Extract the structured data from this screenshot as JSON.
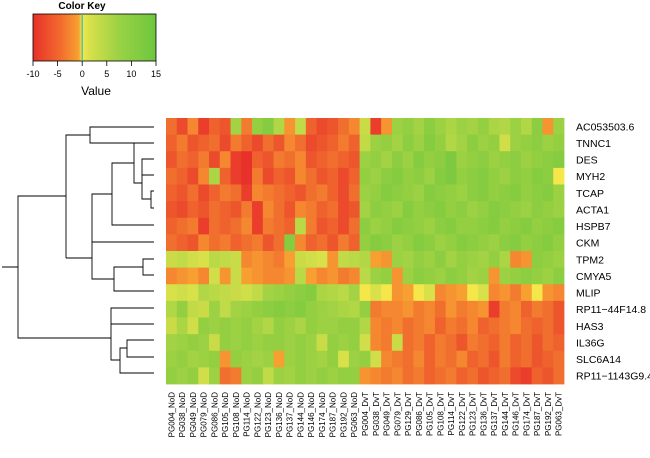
{
  "chart_data": {
    "type": "heatmap",
    "color_key": {
      "title": "Color Key",
      "xlabel": "Value",
      "range": [
        -10,
        15
      ],
      "ticks": [
        "-10",
        "-5",
        "0",
        "5",
        "10",
        "15"
      ],
      "colors": {
        "low": "#e8312a",
        "mid_low": "#f7a031",
        "zero": "#f5e64a",
        "high": "#6ec63e"
      }
    },
    "rows": [
      "AC053503.6",
      "TNNC1",
      "DES",
      "MYH2",
      "TCAP",
      "ACTA1",
      "HSPB7",
      "CKM",
      "TPM2",
      "CMYA5",
      "MLIP",
      "RP11−44F14.8",
      "HAS3",
      "IL36G",
      "SLC6A14",
      "RP11−1143G9.4"
    ],
    "columns": [
      "PG004_NoD",
      "PG038_NoD",
      "PG049_NoD",
      "PG079_NoD",
      "PG086_NoD",
      "PG105_NoD",
      "PG108_NoD",
      "PG114_NoD",
      "PG122_NoD",
      "PG123_NoD",
      "PG136_NoD",
      "PG137_NoD",
      "PG144_NoD",
      "PG146_NoD",
      "PG174_NoD",
      "PG187_NoD",
      "PG192_NoD",
      "PG063_NoD",
      "PG004_DvT",
      "PG038_DvT",
      "PG049_DvT",
      "PG079_DvT",
      "PG129_DvT",
      "PG086_DvT",
      "PG105_DvT",
      "PG108_DvT",
      "PG114_DvT",
      "PG122_DvT",
      "PG123_DvT",
      "PG136_DvT",
      "PG137_DvT",
      "PG144_DvT",
      "PG146_DvT",
      "PG174_DvT",
      "PG187_DvT",
      "PG192_DvT",
      "PG063_DvT"
    ],
    "values": [
      [
        -5,
        -8,
        -3,
        -9,
        -6,
        -7,
        8,
        -4,
        10,
        12,
        6,
        -2,
        4,
        -6,
        -8,
        -7,
        -5,
        -3,
        3,
        -9,
        -2,
        9,
        10,
        8,
        11,
        9,
        7,
        9,
        8,
        10,
        7,
        6,
        9,
        6,
        11,
        -2,
        9
      ],
      [
        -6,
        -4,
        -7,
        -6,
        -5,
        -8,
        -4,
        -6,
        -8,
        -5,
        -7,
        -3,
        -5,
        -8,
        -7,
        -6,
        -4,
        -6,
        4,
        9,
        10,
        8,
        11,
        9,
        12,
        10,
        6,
        8,
        11,
        9,
        10,
        2,
        9,
        10,
        11,
        9,
        10
      ],
      [
        -7,
        -5,
        -6,
        -4,
        -8,
        -3,
        -9,
        -10,
        -6,
        -7,
        -4,
        -5,
        -3,
        -7,
        -6,
        -5,
        -6,
        -7,
        9,
        10,
        8,
        11,
        9,
        12,
        10,
        11,
        13,
        9,
        10,
        11,
        9,
        10,
        11,
        9,
        10,
        11,
        12
      ],
      [
        -5,
        -6,
        -8,
        -3,
        7,
        -6,
        -9,
        -10,
        -4,
        -8,
        -6,
        -7,
        -3,
        -5,
        -7,
        -6,
        -8,
        -6,
        10,
        9,
        11,
        12,
        10,
        11,
        9,
        12,
        13,
        10,
        11,
        12,
        10,
        9,
        11,
        10,
        12,
        11,
        0
      ],
      [
        -6,
        -7,
        -5,
        -8,
        -6,
        -4,
        -5,
        -9,
        -3,
        -4,
        -5,
        -6,
        -7,
        -5,
        -4,
        -6,
        -8,
        -5,
        9,
        10,
        12,
        11,
        10,
        9,
        12,
        11,
        10,
        9,
        11,
        12,
        10,
        11,
        12,
        10,
        11,
        12,
        9
      ],
      [
        -7,
        -8,
        -6,
        -7,
        -5,
        -6,
        -7,
        -4,
        -9,
        -3,
        -5,
        -7,
        -3,
        -4,
        -6,
        -5,
        -8,
        -7,
        8,
        11,
        10,
        9,
        12,
        10,
        11,
        12,
        10,
        11,
        9,
        10,
        12,
        11,
        10,
        9,
        11,
        10,
        9
      ],
      [
        -6,
        -5,
        -4,
        -9,
        -5,
        -6,
        -5,
        -3,
        -9,
        -4,
        -5,
        -6,
        5,
        -4,
        -7,
        -6,
        -8,
        -5,
        11,
        9,
        10,
        12,
        11,
        10,
        9,
        11,
        12,
        10,
        10,
        11,
        12,
        10,
        11,
        12,
        10,
        11,
        12
      ],
      [
        -5,
        -6,
        -7,
        -3,
        -5,
        -4,
        -6,
        -5,
        -4,
        -7,
        -5,
        12,
        -3,
        -6,
        -5,
        -7,
        -4,
        -6,
        10,
        12,
        11,
        9,
        10,
        12,
        11,
        9,
        10,
        12,
        11,
        10,
        9,
        11,
        12,
        10,
        11,
        12,
        10
      ],
      [
        3,
        4,
        2,
        1,
        5,
        4,
        3,
        -3,
        -2,
        -3,
        -4,
        -1,
        3,
        2,
        1,
        -2,
        4,
        5,
        6,
        -1,
        -2,
        9,
        8,
        10,
        9,
        11,
        8,
        10,
        9,
        8,
        10,
        7,
        -3,
        -2,
        11,
        10,
        9
      ],
      [
        -3,
        -2,
        -1,
        -3,
        2,
        -2,
        3,
        -1,
        -2,
        -3,
        -3,
        -2,
        5,
        -1,
        -3,
        -2,
        -4,
        -3,
        5,
        9,
        10,
        -2,
        9,
        11,
        10,
        9,
        11,
        10,
        8,
        9,
        -2,
        9,
        10,
        11,
        10,
        9,
        11
      ],
      [
        1,
        2,
        1,
        6,
        5,
        4,
        3,
        2,
        4,
        8,
        9,
        10,
        11,
        12,
        7,
        6,
        5,
        8,
        0,
        1,
        0,
        -2,
        -1,
        0,
        1,
        -3,
        -2,
        -1,
        0,
        1,
        -3,
        -2,
        -4,
        -1,
        0,
        -2,
        -3
      ],
      [
        6,
        10,
        4,
        3,
        9,
        4,
        8,
        9,
        10,
        11,
        12,
        11,
        12,
        10,
        9,
        8,
        7,
        6,
        10,
        -4,
        -3,
        -3,
        -2,
        -4,
        -3,
        -5,
        -2,
        -4,
        -3,
        -2,
        -9,
        -4,
        -3,
        -6,
        -4,
        -5,
        -7
      ],
      [
        3,
        7,
        2,
        10,
        9,
        10,
        9,
        10,
        8,
        6,
        10,
        9,
        7,
        10,
        9,
        9,
        10,
        10,
        6,
        -3,
        -4,
        -3,
        -5,
        -4,
        -3,
        -6,
        -4,
        -5,
        -3,
        -6,
        -5,
        -4,
        -3,
        -5,
        -6,
        -5,
        -7
      ],
      [
        8,
        9,
        10,
        9,
        3,
        10,
        9,
        10,
        9,
        10,
        10,
        9,
        10,
        9,
        3,
        10,
        9,
        10,
        2,
        -3,
        -4,
        3,
        -5,
        -4,
        -6,
        -4,
        -5,
        -7,
        -4,
        -5,
        -6,
        -4,
        -6,
        -5,
        -7,
        -5,
        -6
      ],
      [
        9,
        10,
        8,
        9,
        10,
        -2,
        10,
        9,
        8,
        9,
        -1,
        9,
        10,
        9,
        8,
        10,
        1,
        9,
        10,
        2,
        -3,
        -4,
        -5,
        -3,
        -6,
        -4,
        -5,
        -3,
        -6,
        -5,
        -7,
        -4,
        -6,
        -5,
        -7,
        -6,
        -5
      ],
      [
        10,
        9,
        10,
        2,
        9,
        -5,
        -4,
        9,
        10,
        4,
        9,
        8,
        10,
        9,
        10,
        9,
        10,
        10,
        -2,
        -3,
        -4,
        -3,
        -5,
        -4,
        -6,
        -5,
        -4,
        -6,
        -5,
        -7,
        -6,
        -5,
        -8,
        -9,
        -6,
        -7,
        -5
      ]
    ]
  }
}
